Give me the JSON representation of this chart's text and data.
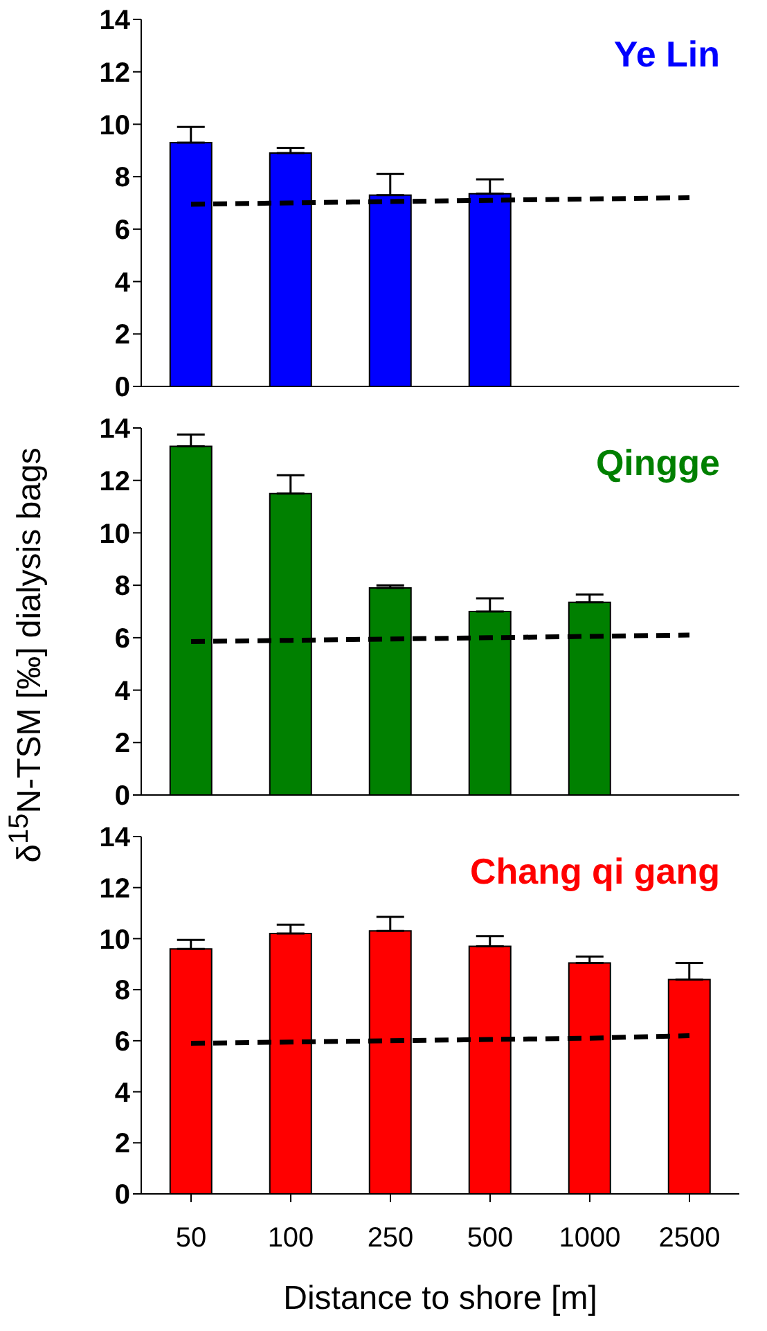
{
  "chart_data": [
    {
      "type": "bar",
      "title": "Ye Lin",
      "categories": [
        "50",
        "100",
        "250",
        "500",
        "1000",
        "2500"
      ],
      "ylim": [
        0,
        14
      ],
      "yticks": [
        0,
        2,
        4,
        6,
        8,
        10,
        12,
        14
      ],
      "tick_labels": "y",
      "grid": false,
      "legend": false,
      "series": [
        {
          "color": "#0000ff",
          "values": [
            9.3,
            8.9,
            7.3,
            7.35,
            null,
            null
          ],
          "errors": [
            0.6,
            0.2,
            0.8,
            0.55,
            null,
            null
          ]
        },
        {
          "type": "line",
          "color": "#000000",
          "line_style": "dashed",
          "values": [
            6.95,
            7.0,
            7.05,
            7.1,
            7.15,
            7.2
          ]
        }
      ]
    },
    {
      "type": "bar",
      "title": "Qingge",
      "ylabel": "δ$^{15}$N-TSM [‰] dialysis bags",
      "categories": [
        "50",
        "100",
        "250",
        "500",
        "1000",
        "2500"
      ],
      "ylim": [
        0,
        14
      ],
      "yticks": [
        0,
        2,
        4,
        6,
        8,
        10,
        12,
        14
      ],
      "tick_labels": "y",
      "grid": false,
      "legend": false,
      "series": [
        {
          "color": "#008000",
          "values": [
            13.3,
            11.5,
            7.9,
            7.0,
            7.35,
            null
          ],
          "errors": [
            0.45,
            0.7,
            0.1,
            0.5,
            0.3,
            null
          ]
        },
        {
          "type": "line",
          "color": "#000000",
          "line_style": "dashed",
          "values": [
            5.85,
            5.9,
            5.95,
            6.0,
            6.05,
            6.1
          ]
        }
      ]
    },
    {
      "type": "bar",
      "title": "Chang qi gang",
      "xlabel": "Distance to shore [m]",
      "categories": [
        "50",
        "100",
        "250",
        "500",
        "1000",
        "2500"
      ],
      "ylim": [
        0,
        14
      ],
      "yticks": [
        0,
        2,
        4,
        6,
        8,
        10,
        12,
        14
      ],
      "grid": false,
      "legend": false,
      "series": [
        {
          "color": "#ff0000",
          "values": [
            9.6,
            10.2,
            10.3,
            9.7,
            9.05,
            8.4
          ],
          "errors": [
            0.35,
            0.35,
            0.55,
            0.4,
            0.25,
            0.65
          ]
        },
        {
          "type": "line",
          "color": "#000000",
          "line_style": "dashed",
          "values": [
            5.9,
            5.95,
            6.0,
            6.05,
            6.1,
            6.2
          ]
        }
      ]
    }
  ]
}
